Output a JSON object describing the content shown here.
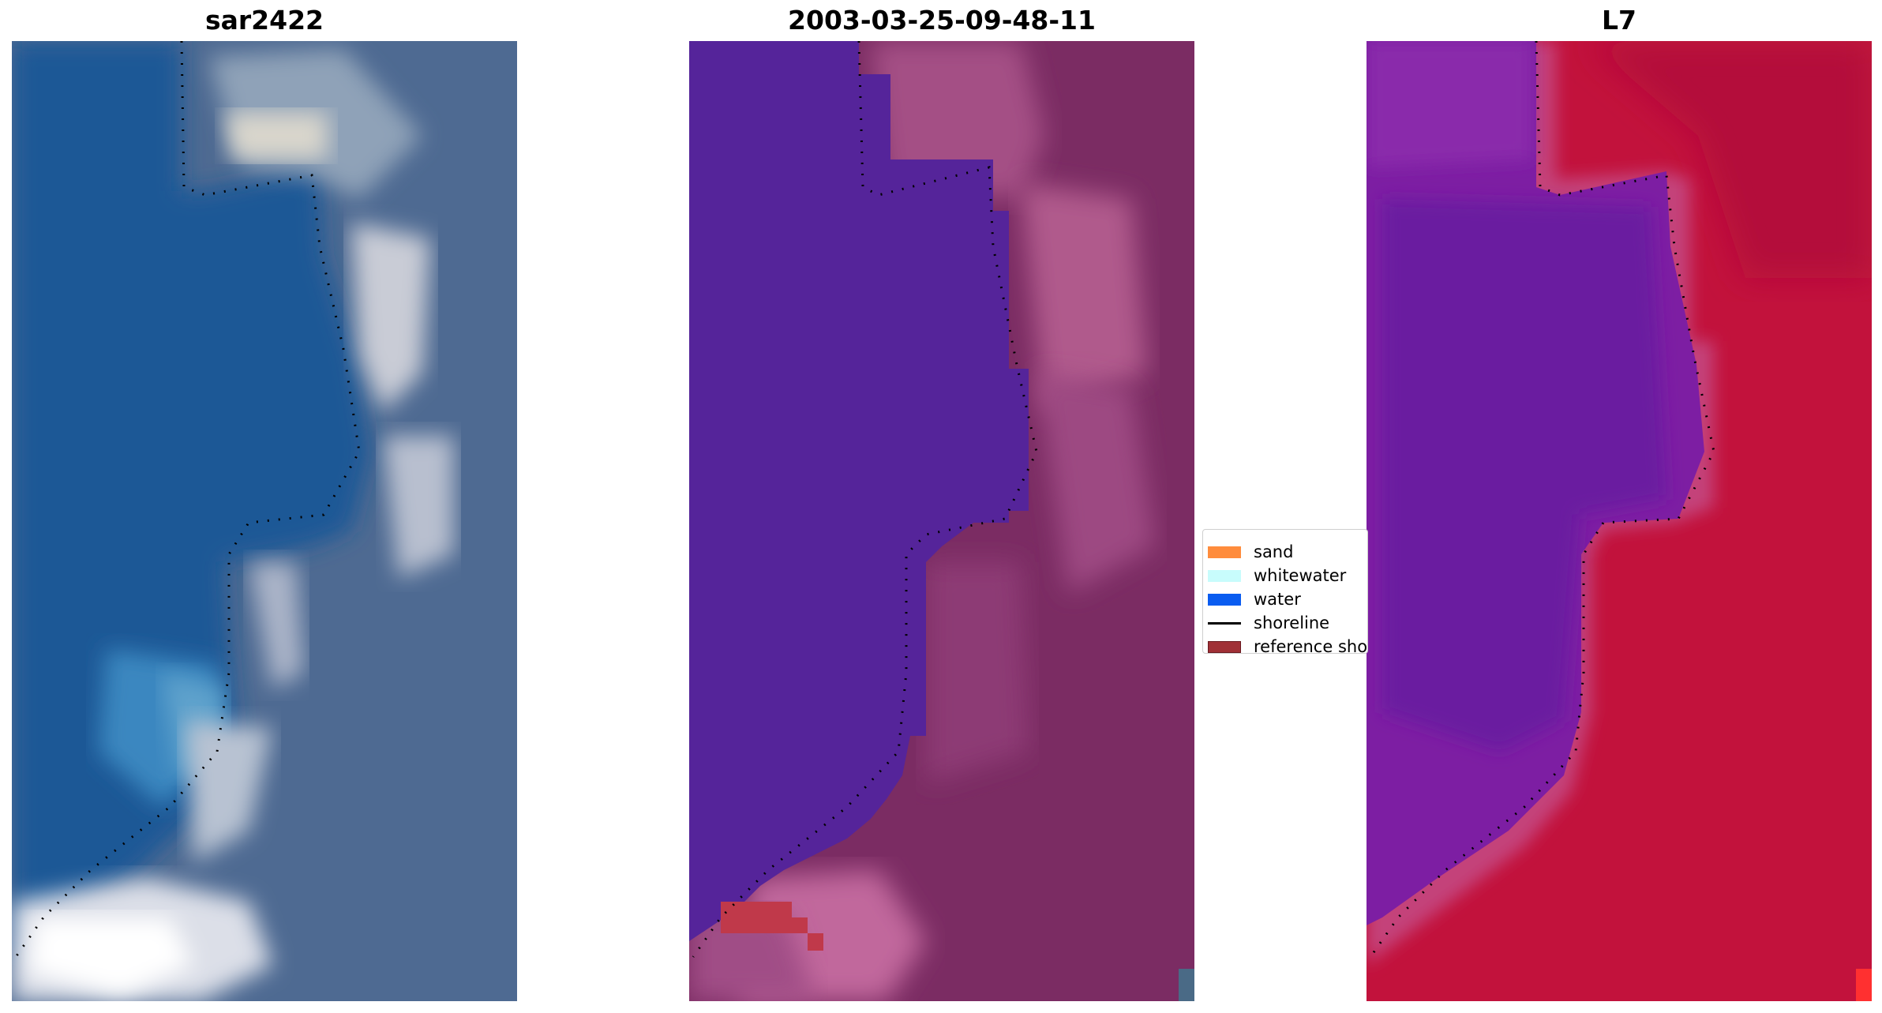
{
  "panels": [
    {
      "title": "sar2422",
      "kind": "rgb",
      "icon": "satellite-rgb-image"
    },
    {
      "title": "2003-03-25-09-48-11",
      "kind": "classified",
      "icon": "classified-image"
    },
    {
      "title": "L7",
      "kind": "index",
      "icon": "water-index-image"
    }
  ],
  "legend": {
    "items": [
      {
        "label": "sand",
        "color": "#ff8c3c",
        "type": "patch"
      },
      {
        "label": "whitewater",
        "color": "#c8fcfc",
        "type": "patch"
      },
      {
        "label": "water",
        "color": "#0a5cf0",
        "type": "patch"
      },
      {
        "label": "shoreline",
        "color": "#000000",
        "type": "line"
      },
      {
        "label": "reference sho",
        "color": "#a03036",
        "type": "patch"
      }
    ]
  },
  "colors": {
    "water_class": "#55249a",
    "land_class": "#7b2c63",
    "index_water": "#7d1ea3",
    "index_land": "#c2123c",
    "rgb_water": "#1f5896",
    "rgb_land": "#4f6890"
  }
}
